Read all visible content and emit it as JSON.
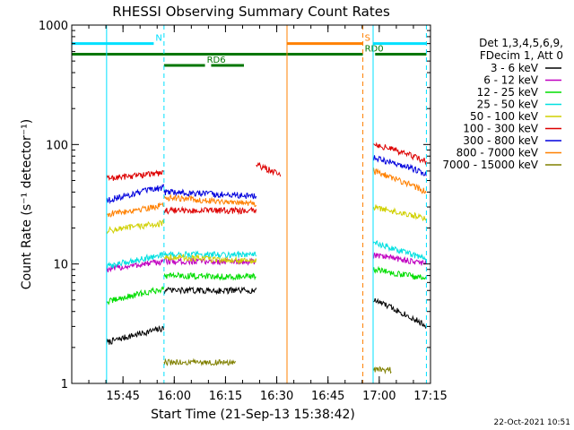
{
  "chart_data": {
    "type": "line",
    "title": "RHESSI Observing Summary Count Rates",
    "xlabel": "Start Time (21-Sep-13 15:38:42)",
    "ylabel": "Count Rate (s⁻¹ detector⁻¹)",
    "y_scale": "log",
    "ylim": [
      1,
      1000
    ],
    "y_ticks": [
      "1",
      "10",
      "100",
      "1000"
    ],
    "x_range_minutes": [
      15.5,
      17.25
    ],
    "x_ticks": [
      "15:45",
      "16:00",
      "16:15",
      "16:30",
      "16:45",
      "17:00",
      "17:15"
    ],
    "grid": false,
    "legend_position": "right",
    "legend_header": [
      "Det 1,3,4,5,6,9,",
      "FDecim 1, Att 0"
    ],
    "series": [
      {
        "name": "3 - 6 keV",
        "color": "#000000",
        "segments": [
          {
            "x": [
              15.67,
              15.95
            ],
            "y_start": 2.2,
            "y_end": 2.9
          },
          {
            "x": [
              15.95,
              16.4
            ],
            "y_start": 6.0,
            "y_end": 6.0
          },
          {
            "x": [
              16.97,
              17.23
            ],
            "y_start": 5.0,
            "y_end": 3.0
          }
        ]
      },
      {
        "name": "6 - 12 keV",
        "color": "#c000c0",
        "segments": [
          {
            "x": [
              15.67,
              15.95
            ],
            "y_start": 9.0,
            "y_end": 10.5
          },
          {
            "x": [
              15.95,
              16.4
            ],
            "y_start": 10.5,
            "y_end": 10.5
          },
          {
            "x": [
              16.97,
              17.23
            ],
            "y_start": 12.0,
            "y_end": 10.0
          }
        ]
      },
      {
        "name": "12 - 25 keV",
        "color": "#00dd00",
        "segments": [
          {
            "x": [
              15.67,
              15.95
            ],
            "y_start": 4.8,
            "y_end": 6.2
          },
          {
            "x": [
              15.95,
              16.4
            ],
            "y_start": 8.0,
            "y_end": 7.8
          },
          {
            "x": [
              16.97,
              17.23
            ],
            "y_start": 9.0,
            "y_end": 7.5
          }
        ]
      },
      {
        "name": "25 - 50 keV",
        "color": "#00e0e0",
        "segments": [
          {
            "x": [
              15.67,
              15.95
            ],
            "y_start": 9.5,
            "y_end": 12.0
          },
          {
            "x": [
              15.95,
              16.4
            ],
            "y_start": 12.0,
            "y_end": 12.0
          },
          {
            "x": [
              16.97,
              17.23
            ],
            "y_start": 15.0,
            "y_end": 11.0
          }
        ]
      },
      {
        "name": "50 - 100 keV",
        "color": "#d0d000",
        "segments": [
          {
            "x": [
              15.67,
              15.95
            ],
            "y_start": 19.0,
            "y_end": 22.0
          },
          {
            "x": [
              15.95,
              16.4
            ],
            "y_start": 11.5,
            "y_end": 10.5
          },
          {
            "x": [
              16.97,
              17.23
            ],
            "y_start": 30.0,
            "y_end": 24.0
          }
        ]
      },
      {
        "name": "100 - 300 keV",
        "color": "#dd0000",
        "segments": [
          {
            "x": [
              15.67,
              15.95
            ],
            "y_start": 52.0,
            "y_end": 58.0
          },
          {
            "x": [
              15.95,
              16.4
            ],
            "y_start": 28.0,
            "y_end": 28.0
          },
          {
            "x": [
              16.4,
              16.52
            ],
            "y_start": 68.0,
            "y_end": 55.0
          },
          {
            "x": [
              16.97,
              17.23
            ],
            "y_start": 102.0,
            "y_end": 72.0
          }
        ]
      },
      {
        "name": "300 - 800 keV",
        "color": "#0000dd",
        "segments": [
          {
            "x": [
              15.67,
              15.95
            ],
            "y_start": 34.0,
            "y_end": 44.0
          },
          {
            "x": [
              15.95,
              16.4
            ],
            "y_start": 40.0,
            "y_end": 37.0
          },
          {
            "x": [
              16.97,
              17.23
            ],
            "y_start": 78.0,
            "y_end": 57.0
          }
        ]
      },
      {
        "name": "800 - 7000 keV",
        "color": "#ff8000",
        "segments": [
          {
            "x": [
              15.67,
              15.95
            ],
            "y_start": 26.0,
            "y_end": 31.0
          },
          {
            "x": [
              15.95,
              16.4
            ],
            "y_start": 36.0,
            "y_end": 32.0
          },
          {
            "x": [
              16.97,
              17.23
            ],
            "y_start": 60.0,
            "y_end": 40.0
          }
        ]
      },
      {
        "name": "7000 - 15000 keV",
        "color": "#808000",
        "segments": [
          {
            "x": [
              15.95,
              16.3
            ],
            "y_start": 1.5,
            "y_end": 1.5
          },
          {
            "x": [
              16.97,
              17.06
            ],
            "y_start": 1.3,
            "y_end": 1.3
          }
        ]
      }
    ],
    "flags": [
      {
        "label": "N",
        "color": "#00e0ff",
        "y": 700,
        "x_ranges": [
          [
            15.5,
            15.9
          ],
          [
            16.97,
            17.23
          ]
        ]
      },
      {
        "label": "S",
        "color": "#ff8000",
        "y": 700,
        "x_ranges": [
          [
            16.55,
            16.92
          ]
        ]
      },
      {
        "label": "RD0",
        "color": "#007700",
        "y": 570,
        "x_ranges": [
          [
            15.5,
            16.92
          ],
          [
            16.98,
            17.23
          ]
        ]
      },
      {
        "label": "RD6",
        "color": "#007700",
        "y": 460,
        "x_ranges": [
          [
            15.95,
            16.15
          ],
          [
            16.18,
            16.34
          ]
        ]
      }
    ],
    "markers": [
      {
        "x": 15.67,
        "color": "#00e0ff",
        "style": "solid"
      },
      {
        "x": 15.95,
        "color": "#00e0ff",
        "style": "dashed"
      },
      {
        "x": 16.55,
        "color": "#ff8000",
        "style": "solid"
      },
      {
        "x": 16.92,
        "color": "#ff8000",
        "style": "dashed"
      },
      {
        "x": 16.97,
        "color": "#00e0ff",
        "style": "solid"
      },
      {
        "x": 17.23,
        "color": "#00e0ff",
        "style": "dashed"
      }
    ],
    "footer_date": "22-Oct-2021 10:51"
  }
}
